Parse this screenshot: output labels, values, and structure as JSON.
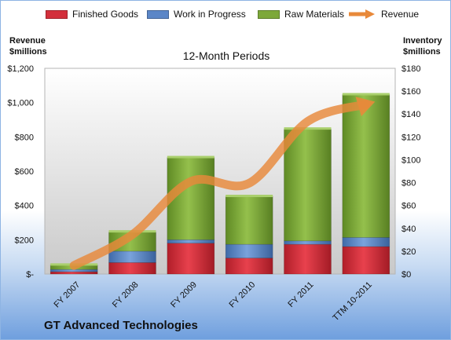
{
  "legend": {
    "finished": "Finished Goods",
    "wip": "Work in Progress",
    "raw": "Raw Materials",
    "revenue": "Revenue"
  },
  "colors": {
    "finished": "#d32f3b",
    "wip": "#5b86c7",
    "raw": "#7da83a",
    "revenue": "#e8893a"
  },
  "left_axis_title": [
    "Revenue",
    "$millions"
  ],
  "right_axis_title": [
    "Inventory",
    "$millions"
  ],
  "subtitle": "12-Month Periods",
  "company": "GT Advanced Technologies",
  "chart_data": {
    "type": "bar",
    "stacked": true,
    "categories": [
      "FY 2007",
      "FY 2008",
      "FY 2009",
      "FY 2010",
      "FY 2011",
      "TTM 10-2011"
    ],
    "series": [
      {
        "name": "Finished Goods",
        "axis": "right",
        "values": [
          2,
          10,
          27,
          14,
          26,
          24
        ]
      },
      {
        "name": "Work in Progress",
        "axis": "right",
        "values": [
          2,
          10,
          3,
          12,
          3,
          8
        ]
      },
      {
        "name": "Raw Materials",
        "axis": "right",
        "values": [
          4,
          17,
          72,
          42,
          98,
          125
        ]
      },
      {
        "name": "Revenue",
        "type": "line",
        "axis": "left",
        "values": [
          50,
          230,
          540,
          530,
          890,
          990
        ]
      }
    ],
    "left_axis": {
      "min": 0,
      "max": 1200,
      "step": 200,
      "tick_labels": [
        "$-",
        "$200",
        "$400",
        "$600",
        "$800",
        "$1,000",
        "$1,200"
      ]
    },
    "right_axis": {
      "min": 0,
      "max": 180,
      "step": 20,
      "tick_labels": [
        "$0",
        "$20",
        "$40",
        "$60",
        "$80",
        "$100",
        "$120",
        "$140",
        "$160",
        "$180"
      ]
    },
    "legend_position": "top",
    "grid": false
  }
}
